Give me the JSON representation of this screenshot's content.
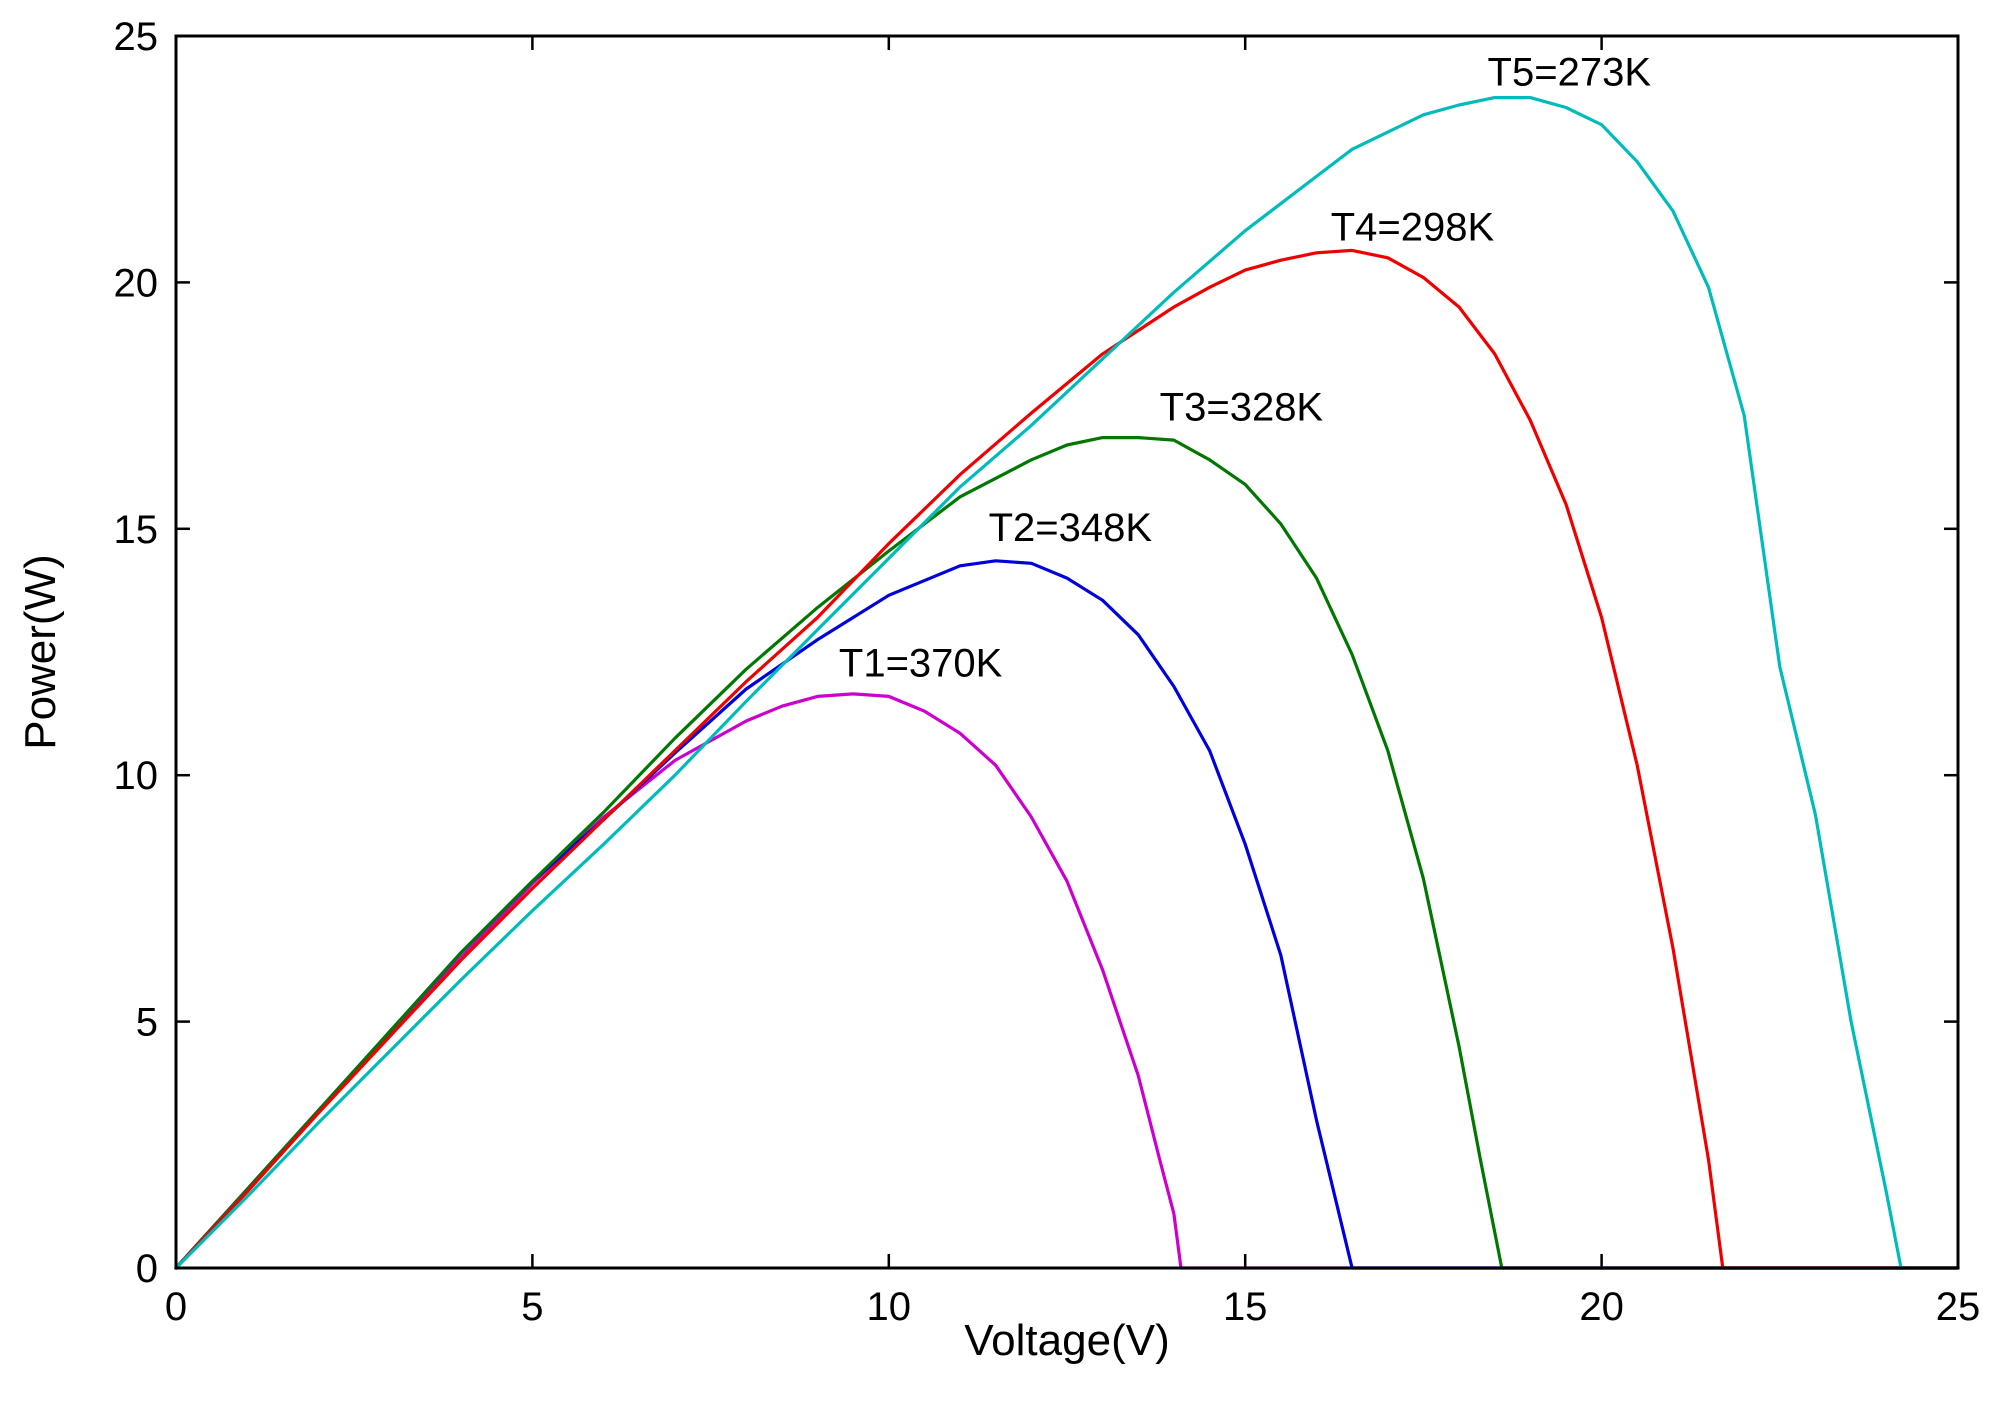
{
  "chart_data": {
    "type": "line",
    "title": "",
    "xlabel": "Voltage(V)",
    "ylabel": "Power(W)",
    "xlim": [
      0,
      25
    ],
    "ylim": [
      0,
      25
    ],
    "xticks": [
      0,
      5,
      10,
      15,
      20,
      25
    ],
    "yticks": [
      0,
      5,
      10,
      15,
      20,
      25
    ],
    "grid": false,
    "series": [
      {
        "name": "T1=370K",
        "label": "T1=370K",
        "color": "#cc00cc",
        "label_anchor": [
          9.3,
          12.0
        ],
        "x": [
          0,
          1,
          2,
          3,
          4,
          5,
          6,
          7,
          8,
          8.5,
          9,
          9.5,
          10,
          10.5,
          11,
          11.5,
          12,
          12.5,
          13,
          13.5,
          13.8,
          14.0,
          14.1,
          25
        ],
        "y": [
          0,
          1.6,
          3.2,
          4.75,
          6.3,
          7.8,
          9.15,
          10.3,
          11.1,
          11.4,
          11.6,
          11.65,
          11.6,
          11.3,
          10.85,
          10.2,
          9.15,
          7.85,
          6.05,
          3.9,
          2.2,
          1.1,
          0,
          0
        ]
      },
      {
        "name": "T2=348K",
        "label": "T2=348K",
        "color": "#0000dd",
        "label_anchor": [
          11.4,
          14.75
        ],
        "x": [
          0,
          1,
          2,
          3,
          4,
          5,
          6,
          7,
          8,
          9,
          10,
          11,
          11.5,
          12,
          12.5,
          13,
          13.5,
          14,
          14.5,
          15,
          15.5,
          16,
          16.5,
          25
        ],
        "y": [
          0,
          1.6,
          3.2,
          4.8,
          6.4,
          7.85,
          9.1,
          10.45,
          11.75,
          12.75,
          13.65,
          14.25,
          14.35,
          14.3,
          14.0,
          13.55,
          12.85,
          11.8,
          10.5,
          8.6,
          6.35,
          3.0,
          0,
          0
        ]
      },
      {
        "name": "T3=328K",
        "label": "T3=328K",
        "color": "#007700",
        "label_anchor": [
          13.8,
          17.2
        ],
        "x": [
          0,
          1,
          2,
          3,
          4,
          5,
          6,
          7,
          8,
          9,
          10,
          11,
          12,
          12.5,
          13,
          13.5,
          14,
          14.5,
          15,
          15.5,
          16,
          16.5,
          17,
          17.5,
          18,
          18.3,
          18.6,
          25
        ],
        "y": [
          0,
          1.6,
          3.2,
          4.8,
          6.4,
          7.85,
          9.25,
          10.75,
          12.15,
          13.4,
          14.55,
          15.65,
          16.4,
          16.7,
          16.85,
          16.85,
          16.8,
          16.4,
          15.9,
          15.1,
          14.0,
          12.45,
          10.5,
          7.9,
          4.5,
          2.2,
          0,
          0
        ]
      },
      {
        "name": "T4=298K",
        "label": "T4=298K",
        "color": "#ee0000",
        "label_anchor": [
          16.2,
          20.85
        ],
        "x": [
          0,
          1,
          2,
          3,
          4,
          5,
          6,
          7,
          8,
          9,
          10,
          11,
          12,
          13,
          14,
          14.5,
          15,
          15.5,
          16,
          16.5,
          17,
          17.5,
          18,
          18.5,
          19,
          19.5,
          20,
          20.5,
          21,
          21.5,
          21.7,
          25
        ],
        "y": [
          0,
          1.55,
          3.15,
          4.7,
          6.25,
          7.7,
          9.1,
          10.5,
          11.9,
          13.2,
          14.7,
          16.1,
          17.35,
          18.55,
          19.5,
          19.9,
          20.25,
          20.45,
          20.6,
          20.65,
          20.5,
          20.1,
          19.5,
          18.55,
          17.2,
          15.5,
          13.2,
          10.2,
          6.5,
          2.2,
          0,
          0
        ]
      },
      {
        "name": "T5=273K",
        "label": "T5=273K",
        "color": "#00bbbb",
        "label_anchor": [
          18.4,
          24.0
        ],
        "x": [
          0,
          1,
          2,
          3,
          4,
          5,
          6,
          7,
          8,
          9,
          10,
          11,
          12,
          13,
          14,
          15,
          16,
          16.5,
          17,
          17.5,
          18,
          18.5,
          19,
          19.5,
          20,
          20.5,
          21,
          21.5,
          22,
          22.5,
          23,
          23.5,
          24,
          24.2,
          25
        ],
        "y": [
          0,
          1.45,
          2.95,
          4.4,
          5.85,
          7.25,
          8.6,
          10.0,
          11.5,
          12.95,
          14.4,
          15.85,
          17.1,
          18.45,
          19.8,
          21.05,
          22.15,
          22.7,
          23.05,
          23.4,
          23.6,
          23.75,
          23.75,
          23.55,
          23.2,
          22.45,
          21.45,
          19.9,
          17.3,
          12.2,
          9.2,
          5.0,
          1.5,
          0,
          0
        ]
      }
    ]
  }
}
